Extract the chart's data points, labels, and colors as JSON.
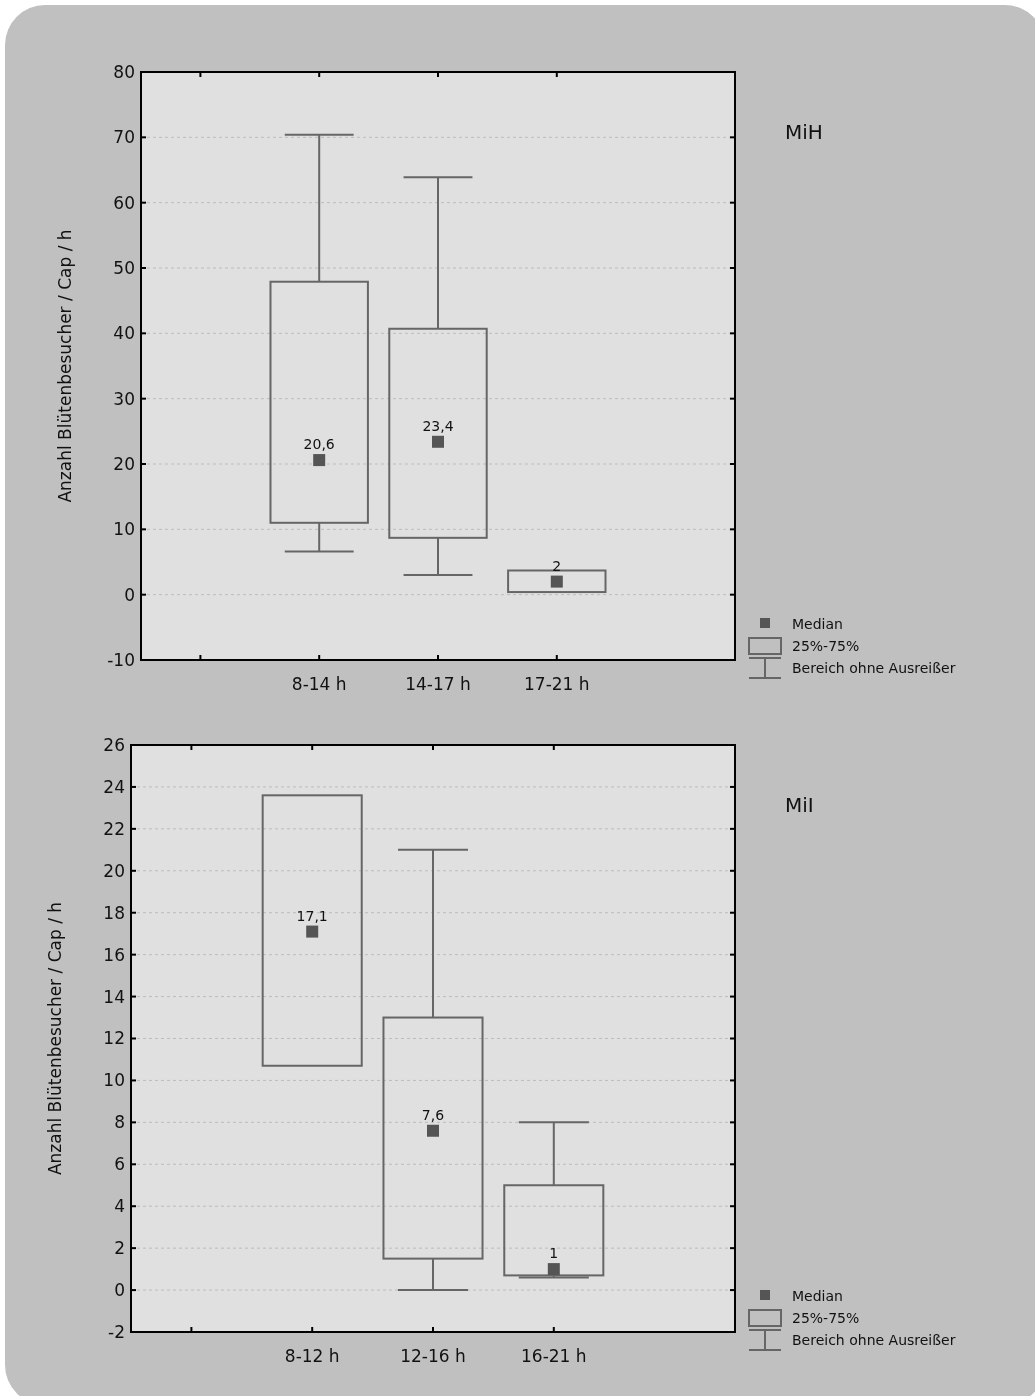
{
  "chart_data": [
    {
      "type": "box",
      "ylabel": "Anzahl Blütenbesucher / Cap / h",
      "categories": [
        "8-14 h",
        "14-17 h",
        "17-21 h"
      ],
      "color": "#666666",
      "boxes": [
        {
          "low": 6.6,
          "q1": 11.0,
          "median": 20.6,
          "q3": 47.9,
          "high": 70.4
        },
        {
          "low": 3.0,
          "q1": 8.7,
          "median": 23.4,
          "q3": 40.7,
          "high": 63.9
        },
        {
          "low": 0.4,
          "q1": 0.4,
          "median": 2,
          "q3": 3.7,
          "high": 3.7
        }
      ],
      "ylim": [
        -10,
        80
      ],
      "yticks": [
        -10,
        0,
        10,
        20,
        30,
        40,
        50,
        60,
        70,
        80
      ],
      "grid": "y",
      "value_labels": [
        "20,6",
        "23,4",
        "2"
      ],
      "marker": "square",
      "annotations": [
        "MiH",
        "Median",
        "25%-75%",
        "Bereich ohne Ausreißer"
      ]
    },
    {
      "type": "box",
      "ylabel": "Anzahl Blütenbesucher / Cap / h",
      "categories": [
        "8-12 h",
        "12-16 h",
        "16-21 h"
      ],
      "color": "#666666",
      "boxes": [
        {
          "low": 10.7,
          "q1": 10.7,
          "median": 17.1,
          "q3": 23.6,
          "high": 23.6
        },
        {
          "low": 0,
          "q1": 1.5,
          "median": 7.6,
          "q3": 13.0,
          "high": 21.0
        },
        {
          "low": 0.6,
          "q1": 0.7,
          "median": 1,
          "q3": 5.0,
          "high": 8.0
        }
      ],
      "ylim": [
        -2,
        26
      ],
      "yticks": [
        -2,
        0,
        2,
        4,
        6,
        8,
        10,
        12,
        14,
        16,
        18,
        20,
        22,
        24,
        26
      ],
      "grid": "y",
      "value_labels": [
        "17,1",
        "7,6",
        "1"
      ],
      "marker": "square",
      "annotations": [
        "MiI",
        "Median",
        "25%-75%",
        "Bereich ohne Ausreißer"
      ]
    }
  ]
}
